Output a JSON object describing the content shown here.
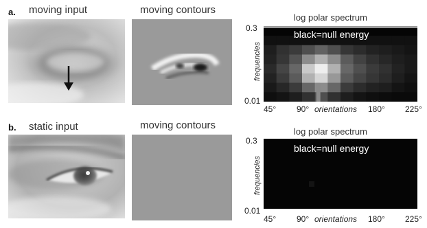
{
  "panel_a": {
    "letter": "a.",
    "input_title": "moving input",
    "contours_title": "moving contours",
    "spectrum_title": "log polar spectrum",
    "legend_note": "black=null energy",
    "y_tick_top": "0.3",
    "y_tick_bottom": "0.01",
    "y_label": "frequencies",
    "x_ticks": [
      "45°",
      "90°",
      "180°",
      "225°"
    ],
    "x_label": "orientations",
    "spectrum_grid": [
      [
        0.05,
        0.05,
        0.05,
        0.05,
        0.05,
        0.05,
        0.05,
        0.05,
        0.05,
        0.05,
        0.05,
        0.05
      ],
      [
        0.1,
        0.18,
        0.22,
        0.3,
        0.38,
        0.3,
        0.2,
        0.16,
        0.12,
        0.1,
        0.08,
        0.06
      ],
      [
        0.12,
        0.2,
        0.32,
        0.55,
        0.7,
        0.55,
        0.35,
        0.25,
        0.18,
        0.14,
        0.1,
        0.08
      ],
      [
        0.15,
        0.26,
        0.4,
        0.8,
        0.95,
        0.7,
        0.4,
        0.3,
        0.22,
        0.18,
        0.12,
        0.08
      ],
      [
        0.12,
        0.22,
        0.35,
        0.7,
        0.85,
        0.6,
        0.35,
        0.26,
        0.2,
        0.16,
        0.1,
        0.06
      ],
      [
        0.08,
        0.14,
        0.22,
        0.4,
        0.55,
        0.4,
        0.22,
        0.16,
        0.12,
        0.1,
        0.06,
        0.04
      ],
      [
        0.04,
        0.06,
        0.1,
        0.18,
        0.3,
        0.18,
        0.1,
        0.06,
        0.04,
        0.03,
        0.02,
        0.02
      ]
    ]
  },
  "panel_b": {
    "letter": "b.",
    "input_title": "static input",
    "contours_title": "moving contours",
    "spectrum_title": "log polar spectrum",
    "legend_note": "black=null energy",
    "y_tick_top": "0.3",
    "y_tick_bottom": "0.01",
    "y_label": "frequencies",
    "x_ticks": [
      "45°",
      "90°",
      "180°",
      "225°"
    ],
    "x_label": "orientations"
  },
  "colors": {
    "arrow": "#111111",
    "spectrum_background": "#050505",
    "contours_gray": "#9a9a9a"
  },
  "icons": {
    "motion_arrow": "arrow-down-icon"
  }
}
